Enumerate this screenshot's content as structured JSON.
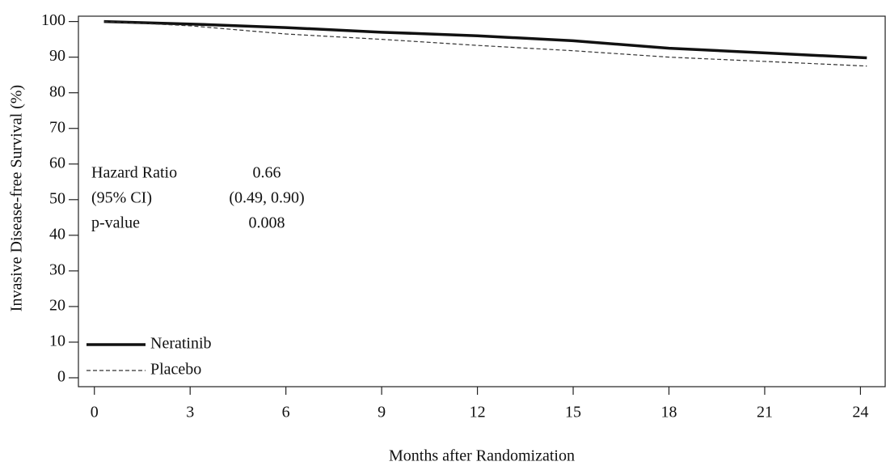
{
  "chart_data": {
    "type": "line",
    "x_label": "Months after Randomization",
    "y_label": "Invasive Disease-free Survival (%)",
    "xlim": [
      -0.5,
      24.8
    ],
    "xticks": [
      0,
      3,
      6,
      9,
      12,
      15,
      18,
      21,
      24
    ],
    "ylim": [
      -2.5,
      101.5
    ],
    "yticks": [
      0,
      10,
      20,
      30,
      40,
      50,
      60,
      70,
      80,
      90,
      100
    ],
    "legend": "bottom-left",
    "series": [
      {
        "name": "Neratinib",
        "color": "#111111",
        "style": "solid",
        "x": [
          0.3,
          3,
          6,
          9,
          12,
          15,
          18,
          21,
          24.2
        ],
        "values": [
          100,
          99.3,
          98.3,
          97,
          96,
          94.6,
          92.5,
          91.2,
          89.8
        ]
      },
      {
        "name": "Placebo",
        "color": "#333333",
        "style": "dashed",
        "x": [
          0.3,
          3,
          6,
          9,
          12,
          15,
          18,
          21,
          24.2
        ],
        "values": [
          100,
          98.8,
          96.5,
          95,
          93.3,
          91.8,
          90,
          88.8,
          87.5
        ]
      }
    ],
    "annotations": [
      [
        "Hazard Ratio",
        "0.66"
      ],
      [
        "(95% CI)",
        "(0.49, 0.90)"
      ],
      [
        "p-value",
        "0.008"
      ]
    ]
  }
}
